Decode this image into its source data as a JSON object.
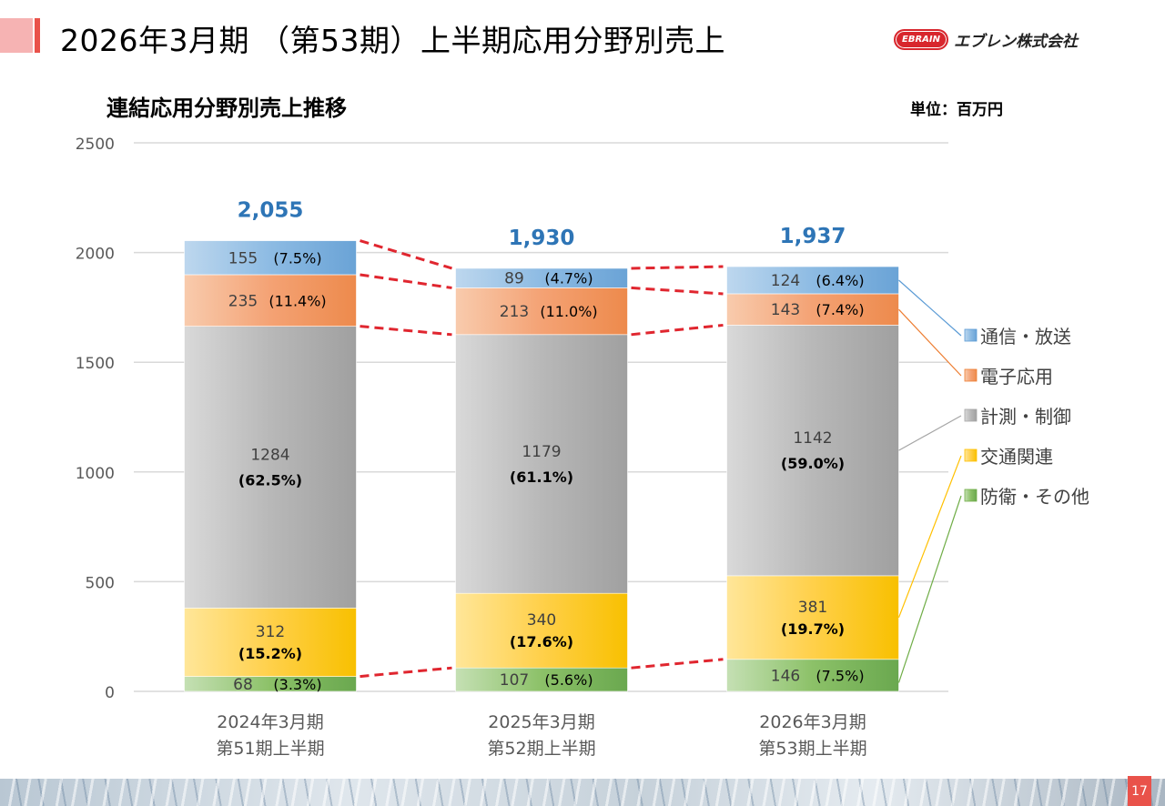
{
  "header": {
    "title": "2026年3月期 （第53期）上半期応用分野別売上",
    "logo_badge": "EBRAIN",
    "logo_name": "エブレン株式会社"
  },
  "page_number": "17",
  "chart_data": {
    "type": "bar",
    "stacked": true,
    "title": "連結応用分野別売上推移",
    "unit": "単位：百万円",
    "ylim": [
      0,
      2500
    ],
    "yticks": [
      0,
      500,
      1000,
      1500,
      2000,
      2500
    ],
    "grid": true,
    "legend_position": "right",
    "categories": [
      [
        "2024年3月期",
        "第51期上半期"
      ],
      [
        "2025年3月期",
        "第52期上半期"
      ],
      [
        "2026年3月期",
        "第53期上半期"
      ]
    ],
    "totals": [
      "2,055",
      "1,930",
      "1,937"
    ],
    "series": [
      {
        "name": "防衛・その他",
        "color": "#70ad47",
        "values": [
          68,
          107,
          146
        ],
        "pct": [
          "(3.3%)",
          "(5.6%)",
          "(7.5%)"
        ]
      },
      {
        "name": "交通関連",
        "color": "#ffc000",
        "values": [
          312,
          340,
          381
        ],
        "pct": [
          "(15.2%)",
          "(17.6%)",
          "(19.7%)"
        ]
      },
      {
        "name": "計測・制御",
        "color": "#a5a5a5",
        "values": [
          1284,
          1179,
          1142
        ],
        "pct": [
          "(62.5%)",
          "(61.1%)",
          "(59.0%)"
        ]
      },
      {
        "name": "電子応用",
        "color": "#ed7d31",
        "values": [
          235,
          213,
          143
        ],
        "pct": [
          "(11.4%)",
          "(11.0%)",
          "(7.4%)"
        ]
      },
      {
        "name": "通信・放送",
        "color": "#5b9bd5",
        "values": [
          155,
          89,
          124
        ],
        "pct": [
          "(7.5%)",
          "(4.7%)",
          "(6.4%)"
        ]
      }
    ],
    "legend_order": [
      "通信・放送",
      "電子応用",
      "計測・制御",
      "交通関連",
      "防衛・その他"
    ]
  }
}
